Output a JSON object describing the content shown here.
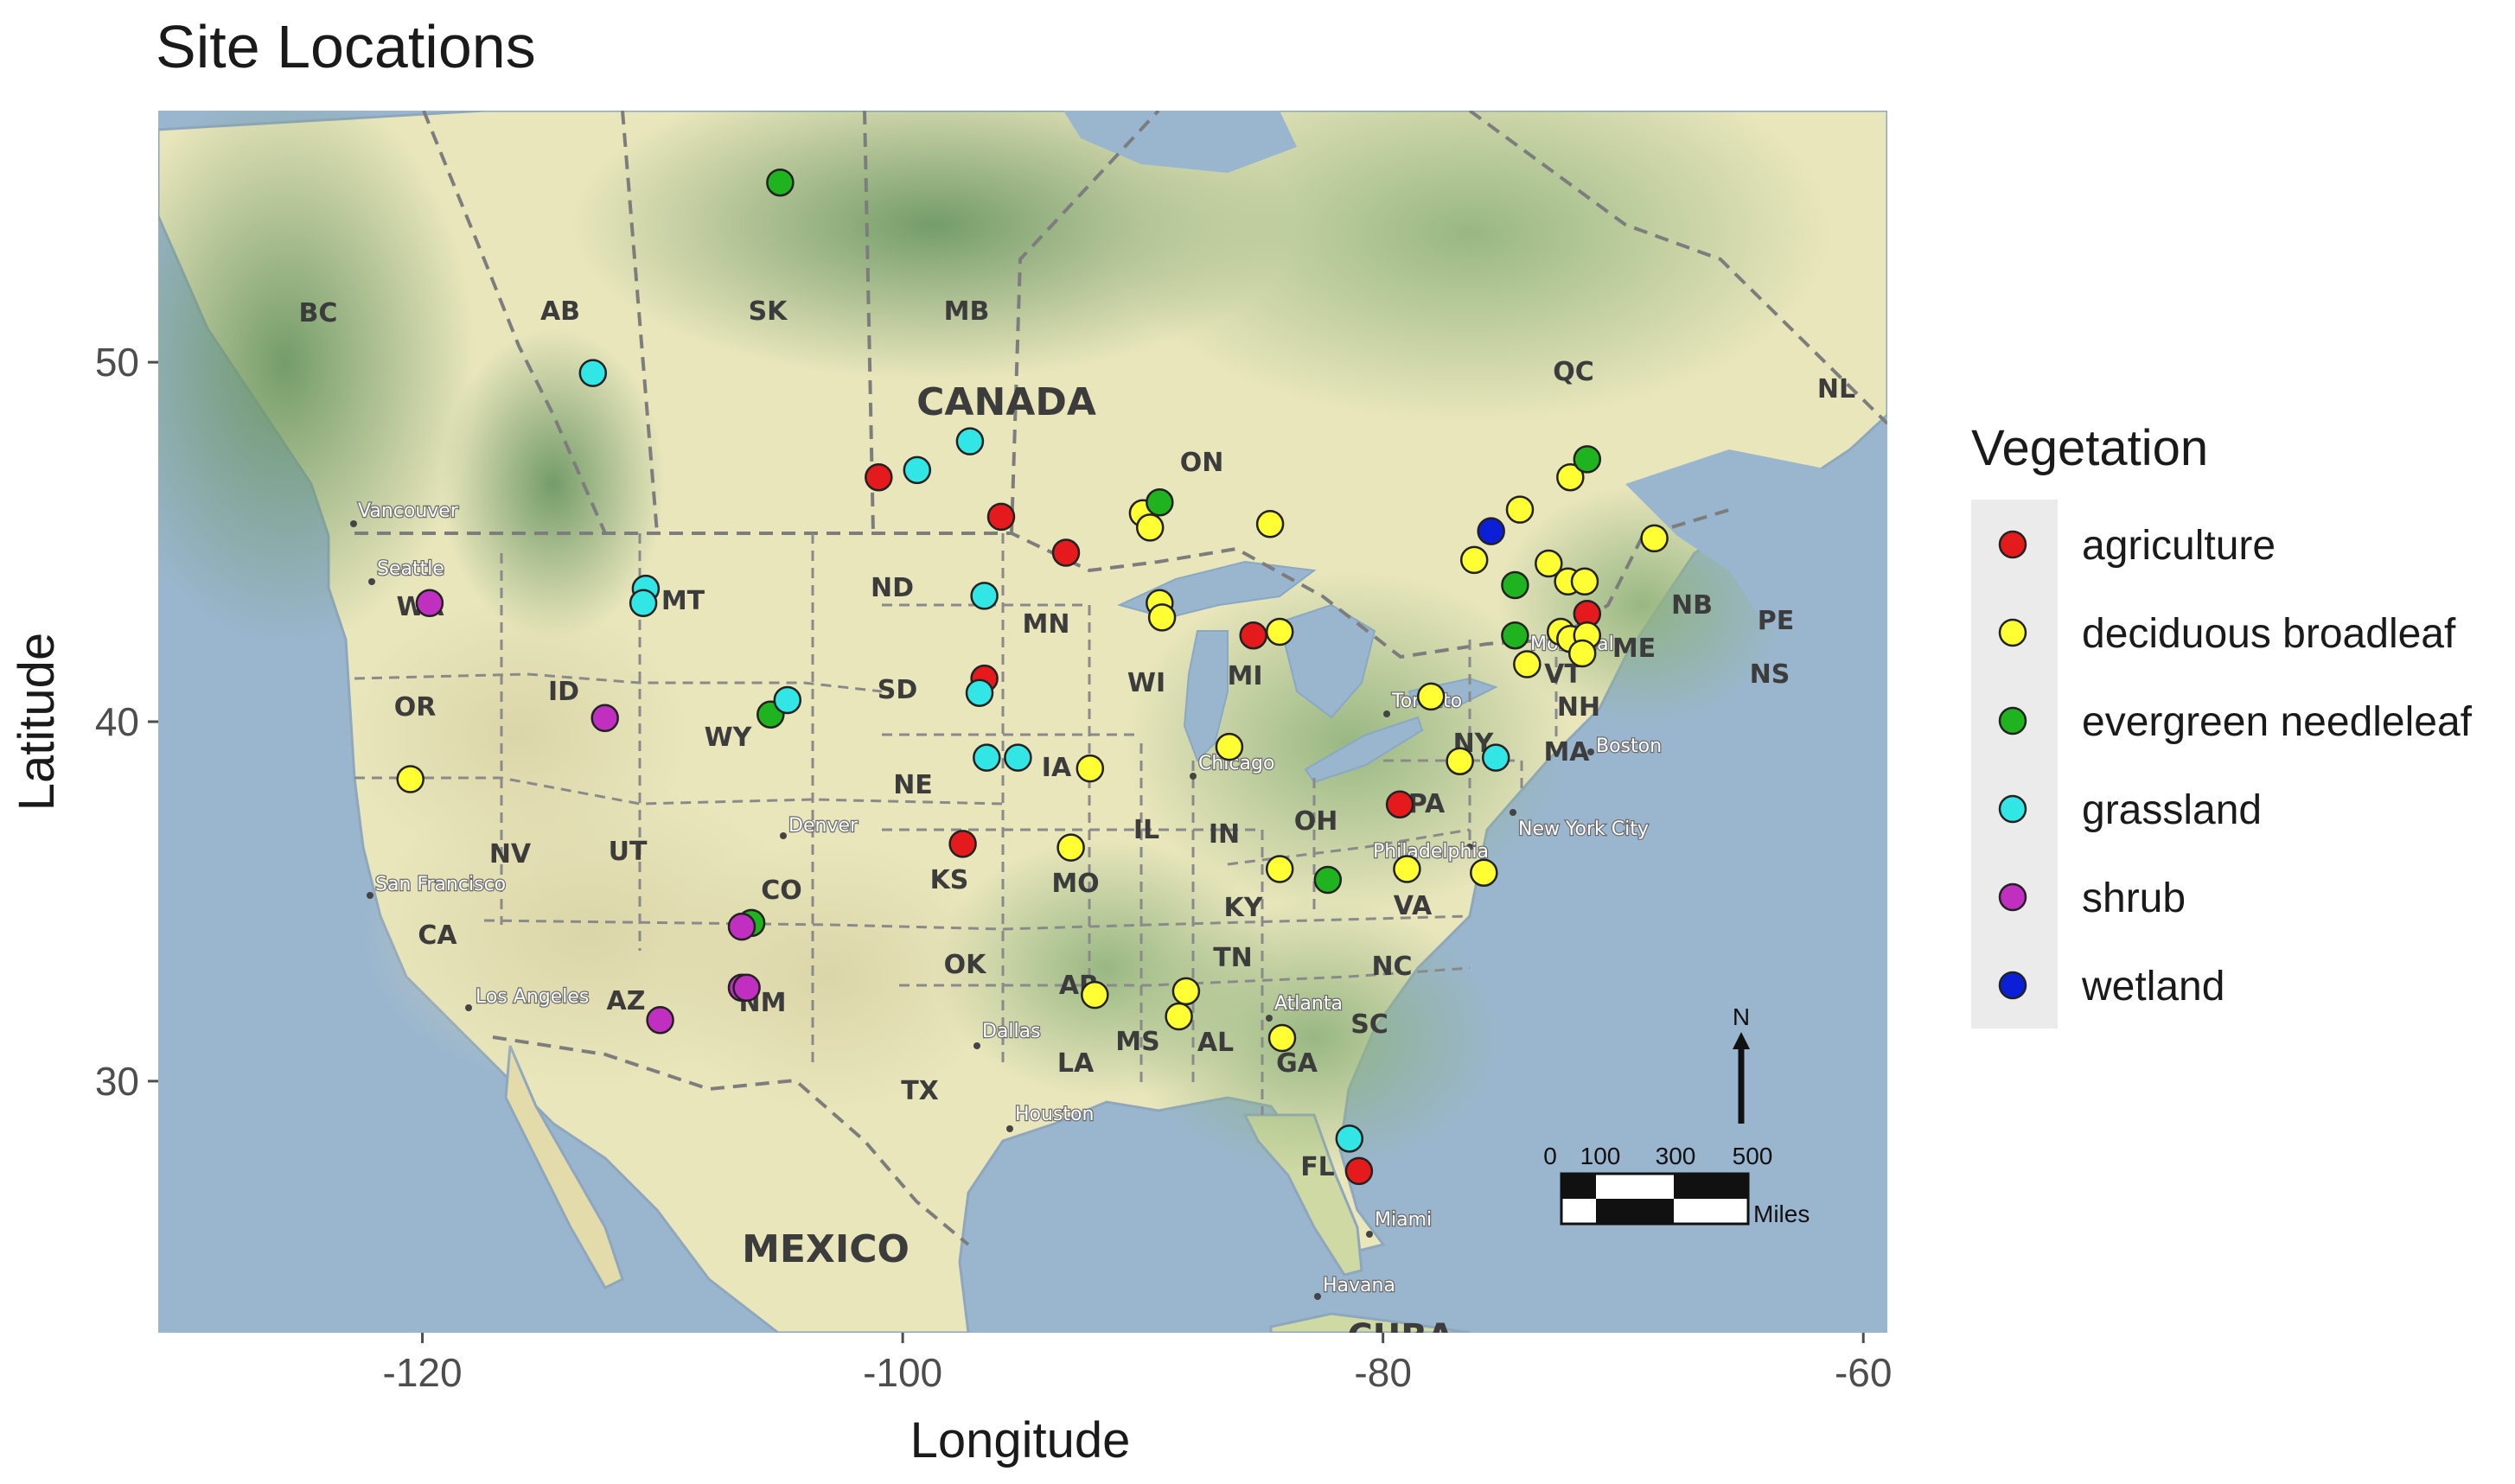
{
  "chart_data": {
    "type": "scatter",
    "title": "Site Locations",
    "xlabel": "Longitude",
    "ylabel": "Latitude",
    "xlim": [
      -131,
      -59
    ],
    "ylim": [
      23,
      57
    ],
    "x_ticks": [
      -120,
      -100,
      -80,
      -60
    ],
    "x_tick_labels": [
      "-120",
      "-100",
      "-80",
      "-60"
    ],
    "y_ticks": [
      30,
      40,
      50
    ],
    "y_tick_labels": [
      "30",
      "40",
      "50"
    ],
    "legend": {
      "title": "Vegetation",
      "position": "right",
      "entries": [
        {
          "name": "agriculture",
          "color": "#e41a1c"
        },
        {
          "name": "deciduous broadleaf",
          "color": "#ffff33"
        },
        {
          "name": "evergreen needleleaf",
          "color": "#1fb31f"
        },
        {
          "name": "grassland",
          "color": "#33e6e6"
        },
        {
          "name": "shrub",
          "color": "#c02fc0"
        },
        {
          "name": "wetland",
          "color": "#0a1fd6"
        }
      ]
    },
    "series": [
      {
        "name": "agriculture",
        "color": "#e41a1c",
        "points": [
          [
            -101.0,
            46.8
          ],
          [
            -95.9,
            45.7
          ],
          [
            -93.2,
            44.7
          ],
          [
            -96.6,
            41.2
          ],
          [
            -97.5,
            36.6
          ],
          [
            -85.4,
            42.4
          ],
          [
            -79.3,
            37.7
          ],
          [
            -71.5,
            43.0
          ],
          [
            -81.0,
            27.5
          ]
        ]
      },
      {
        "name": "deciduous broadleaf",
        "color": "#ffff33",
        "points": [
          [
            -90.0,
            45.8
          ],
          [
            -89.7,
            45.4
          ],
          [
            -84.7,
            45.5
          ],
          [
            -89.3,
            43.3
          ],
          [
            -89.2,
            42.9
          ],
          [
            -84.3,
            42.5
          ],
          [
            -86.4,
            39.3
          ],
          [
            -92.2,
            38.7
          ],
          [
            -93.0,
            36.5
          ],
          [
            -78.0,
            40.7
          ],
          [
            -76.8,
            38.9
          ],
          [
            -79.0,
            35.9
          ],
          [
            -75.8,
            35.8
          ],
          [
            -84.3,
            35.9
          ],
          [
            -92.0,
            32.4
          ],
          [
            -88.2,
            32.5
          ],
          [
            -88.5,
            31.8
          ],
          [
            -84.2,
            31.2
          ],
          [
            -120.5,
            38.4
          ],
          [
            -76.2,
            44.5
          ],
          [
            -74.3,
            45.9
          ],
          [
            -72.2,
            46.8
          ],
          [
            -73.1,
            44.4
          ],
          [
            -72.3,
            43.9
          ],
          [
            -71.6,
            43.9
          ],
          [
            -72.6,
            42.5
          ],
          [
            -72.2,
            42.3
          ],
          [
            -71.5,
            42.4
          ],
          [
            -71.7,
            41.9
          ],
          [
            -74.0,
            41.6
          ],
          [
            -68.7,
            45.1
          ]
        ]
      },
      {
        "name": "evergreen needleleaf",
        "color": "#1fb31f",
        "points": [
          [
            -105.1,
            55.0
          ],
          [
            -89.3,
            46.1
          ],
          [
            -105.5,
            40.2
          ],
          [
            -106.3,
            34.4
          ],
          [
            -82.3,
            35.6
          ],
          [
            -74.5,
            43.8
          ],
          [
            -74.5,
            42.4
          ],
          [
            -71.5,
            47.3
          ]
        ]
      },
      {
        "name": "grassland",
        "color": "#33e6e6",
        "points": [
          [
            -112.9,
            49.7
          ],
          [
            -99.4,
            47.0
          ],
          [
            -97.2,
            47.8
          ],
          [
            -96.6,
            43.5
          ],
          [
            -110.7,
            43.7
          ],
          [
            -110.8,
            43.3
          ],
          [
            -96.8,
            40.8
          ],
          [
            -104.8,
            40.6
          ],
          [
            -96.5,
            39.0
          ],
          [
            -95.2,
            39.0
          ],
          [
            -75.3,
            39.0
          ],
          [
            -81.4,
            28.4
          ]
        ]
      },
      {
        "name": "shrub",
        "color": "#c02fc0",
        "points": [
          [
            -119.7,
            43.3
          ],
          [
            -112.4,
            40.1
          ],
          [
            -106.7,
            34.3
          ],
          [
            -106.7,
            32.6
          ],
          [
            -106.5,
            32.6
          ],
          [
            -110.1,
            31.7
          ]
        ]
      },
      {
        "name": "wetland",
        "color": "#0a1fd6",
        "points": [
          [
            -75.5,
            45.3
          ]
        ]
      }
    ]
  },
  "map_labels": {
    "countries": [
      "CANADA",
      "MEXICO",
      "CUBA"
    ],
    "regions": [
      "BC",
      "AB",
      "SK",
      "MB",
      "ON",
      "QC",
      "NL",
      "NB",
      "PE",
      "NS",
      "WA",
      "OR",
      "ID",
      "MT",
      "WY",
      "NV",
      "UT",
      "CO",
      "CA",
      "AZ",
      "NM",
      "ND",
      "SD",
      "NE",
      "KS",
      "OK",
      "TX",
      "MN",
      "IA",
      "MO",
      "AR",
      "LA",
      "WI",
      "IL",
      "MI",
      "IN",
      "OH",
      "KY",
      "TN",
      "MS",
      "AL",
      "GA",
      "FL",
      "SC",
      "NC",
      "VA",
      "PA",
      "NY",
      "VT",
      "NH",
      "ME",
      "MA"
    ],
    "cities": [
      "Vancouver",
      "Seattle",
      "San Francisco",
      "Los Angeles",
      "Denver",
      "Dallas",
      "Houston",
      "Chicago",
      "Toronto",
      "Montréal",
      "Boston",
      "New York City",
      "Philadelphia",
      "Atlanta",
      "Miami",
      "Havana"
    ]
  },
  "scale_bar": {
    "ticks": [
      "0",
      "100",
      "300",
      "500"
    ],
    "unit": "Miles",
    "north_label": "N"
  }
}
